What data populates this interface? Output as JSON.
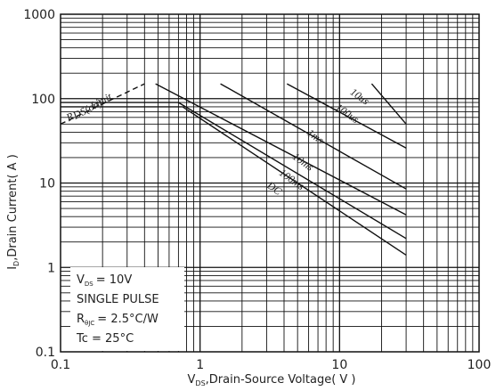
{
  "chart_data": {
    "type": "line",
    "title": "",
    "x_axis": {
      "label_main": "V",
      "label_sub": "DS",
      "label_rest": ",Drain-Source Voltage( V )",
      "scale": "log",
      "range": [
        0.1,
        100
      ],
      "ticks": [
        "0.1",
        "1",
        "10",
        "100"
      ]
    },
    "y_axis": {
      "label_main": "I",
      "label_sub": "D",
      "label_rest": ",Drain Current( A )",
      "scale": "log",
      "range": [
        0.1,
        1000
      ],
      "ticks": [
        "0.1",
        "1",
        "10",
        "100",
        "1000"
      ]
    },
    "grid": true,
    "series": [
      {
        "name": "R DS(on) Limit",
        "style": "dashed",
        "points": [
          [
            0.1,
            50
          ],
          [
            0.4,
            150
          ]
        ]
      },
      {
        "name": "DC",
        "points": [
          [
            0.1,
            80
          ],
          [
            0.75,
            80
          ],
          [
            30,
            1.4
          ]
        ]
      },
      {
        "name": "100ms",
        "points": [
          [
            0.1,
            90
          ],
          [
            0.7,
            90
          ],
          [
            30,
            2.2
          ]
        ]
      },
      {
        "name": "10ms",
        "points": [
          [
            0.48,
            150
          ],
          [
            30,
            4.2
          ]
        ]
      },
      {
        "name": "1ms",
        "points": [
          [
            1.4,
            150
          ],
          [
            30,
            8.5
          ]
        ]
      },
      {
        "name": "100us",
        "points": [
          [
            4.2,
            150
          ],
          [
            30,
            26
          ]
        ]
      },
      {
        "name": "10us",
        "points": [
          [
            17,
            150
          ],
          [
            30,
            50
          ]
        ]
      }
    ],
    "annotations": [
      {
        "key": "rds_r",
        "text": "R",
        "x": 0.12,
        "y": 56,
        "angle": -28
      },
      {
        "key": "rds_sub",
        "text": "DS(on)",
        "x": 0.16,
        "y": 69,
        "angle": -28
      },
      {
        "key": "rds_limit",
        "text": "Limit",
        "x": 0.2,
        "y": 86,
        "angle": -28
      },
      {
        "key": "dc",
        "text": "DC",
        "x": 3.3,
        "y": 8.0,
        "angle": 35
      },
      {
        "key": "ms100",
        "text": "100ms",
        "x": 4.4,
        "y": 10.2,
        "angle": 35
      },
      {
        "key": "ms10",
        "text": "10ms",
        "x": 5.3,
        "y": 16.5,
        "angle": 35
      },
      {
        "key": "ms1",
        "text": "1ms",
        "x": 6.5,
        "y": 33,
        "angle": 35
      },
      {
        "key": "us100",
        "text": "100us",
        "x": 11.0,
        "y": 62,
        "angle": 35
      },
      {
        "key": "us10",
        "text": "10us",
        "x": 13.5,
        "y": 98,
        "angle": 35
      }
    ],
    "conditions": {
      "vds_label": "V",
      "vds_sub": "DS",
      "vds_value": "= 10V",
      "pulse": "SINGLE PULSE",
      "rth_label": "R",
      "rth_sub": "θJC",
      "rth_value": "= 2.5°C/W",
      "tc": "Tc = 25°C"
    }
  }
}
